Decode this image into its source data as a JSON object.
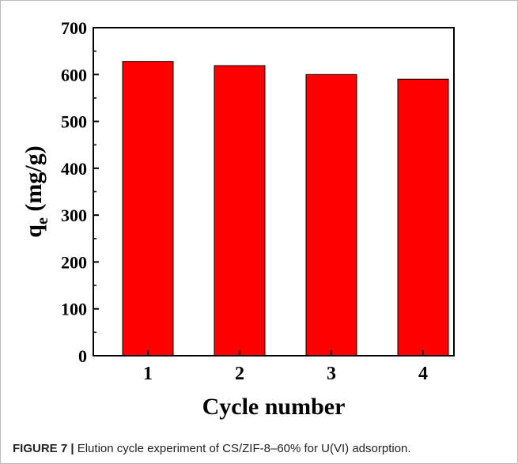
{
  "chart_data": {
    "type": "bar",
    "x_label": "Cycle number",
    "y_label": "qe (mg/g)",
    "categories": [
      "1",
      "2",
      "3",
      "4"
    ],
    "values": [
      628,
      619,
      600,
      590
    ],
    "color": "#ff0000",
    "ylim": [
      0,
      700
    ],
    "yticks": [
      0,
      100,
      200,
      300,
      400,
      500,
      600,
      700
    ],
    "grid": false
  },
  "caption": {
    "label": "FIGURE 7 |",
    "text": "Elution cycle experiment of CS/ZIF-8–60% for U(VI) adsorption."
  }
}
